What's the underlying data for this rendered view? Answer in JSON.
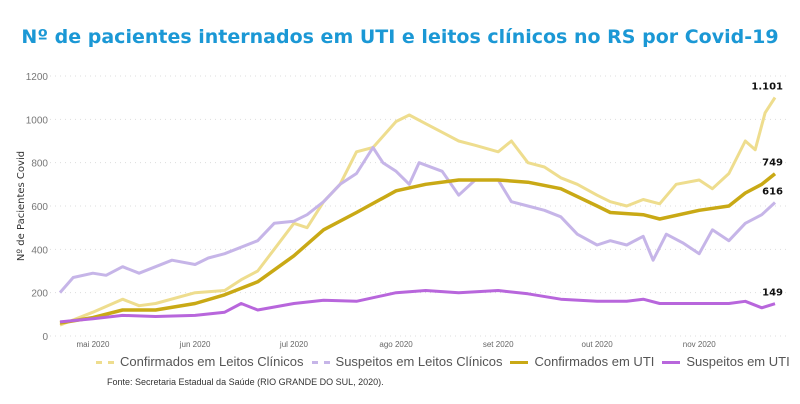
{
  "title": "Nº de pacientes internados em UTI e leitos clínicos no RS por Covid-19",
  "source": "Fonte: Secretaria Estadual da Saúde (RIO GRANDE DO SUL, 2020).",
  "chart_data": {
    "type": "line",
    "title": "Nº de pacientes internados em UTI e leitos clínicos no RS por Covid-19",
    "xlabel": "",
    "ylabel": "Nº de Pacientes Covid",
    "ylim": [
      0,
      1200
    ],
    "yticks": [
      0,
      200,
      400,
      600,
      800,
      1000,
      1200
    ],
    "xlim": [
      "2020-04-21",
      "2020-11-24"
    ],
    "xticks": [
      {
        "date": "2020-05-01",
        "label": "mai 2020"
      },
      {
        "date": "2020-06-01",
        "label": "jun 2020"
      },
      {
        "date": "2020-07-01",
        "label": "jul 2020"
      },
      {
        "date": "2020-08-01",
        "label": "ago 2020"
      },
      {
        "date": "2020-09-01",
        "label": "set 2020"
      },
      {
        "date": "2020-10-01",
        "label": "out 2020"
      },
      {
        "date": "2020-11-01",
        "label": "nov 2020"
      }
    ],
    "grid": true,
    "legend_position": "bottom",
    "series": [
      {
        "name": "Confirmados em Leitos Clínicos",
        "color": "#eedd8e",
        "dashed_legend": true,
        "end_label": "1.101",
        "points": [
          [
            "2020-04-21",
            50
          ],
          [
            "2020-05-01",
            110
          ],
          [
            "2020-05-10",
            170
          ],
          [
            "2020-05-15",
            140
          ],
          [
            "2020-05-20",
            150
          ],
          [
            "2020-06-01",
            200
          ],
          [
            "2020-06-10",
            210
          ],
          [
            "2020-06-15",
            260
          ],
          [
            "2020-06-20",
            300
          ],
          [
            "2020-06-25",
            400
          ],
          [
            "2020-07-01",
            520
          ],
          [
            "2020-07-05",
            500
          ],
          [
            "2020-07-10",
            620
          ],
          [
            "2020-07-15",
            700
          ],
          [
            "2020-07-20",
            850
          ],
          [
            "2020-07-25",
            870
          ],
          [
            "2020-08-01",
            990
          ],
          [
            "2020-08-05",
            1020
          ],
          [
            "2020-08-10",
            980
          ],
          [
            "2020-08-15",
            940
          ],
          [
            "2020-08-20",
            900
          ],
          [
            "2020-08-25",
            880
          ],
          [
            "2020-09-01",
            850
          ],
          [
            "2020-09-05",
            900
          ],
          [
            "2020-09-10",
            800
          ],
          [
            "2020-09-15",
            780
          ],
          [
            "2020-09-20",
            730
          ],
          [
            "2020-09-25",
            700
          ],
          [
            "2020-10-01",
            650
          ],
          [
            "2020-10-05",
            620
          ],
          [
            "2020-10-10",
            600
          ],
          [
            "2020-10-15",
            630
          ],
          [
            "2020-10-20",
            610
          ],
          [
            "2020-10-25",
            700
          ],
          [
            "2020-11-01",
            720
          ],
          [
            "2020-11-05",
            680
          ],
          [
            "2020-11-10",
            750
          ],
          [
            "2020-11-15",
            900
          ],
          [
            "2020-11-18",
            860
          ],
          [
            "2020-11-21",
            1030
          ],
          [
            "2020-11-24",
            1101
          ]
        ]
      },
      {
        "name": "Suspeitos em Leitos Clínicos",
        "color": "#c6b5e8",
        "dashed_legend": true,
        "end_label": "616",
        "points": [
          [
            "2020-04-21",
            200
          ],
          [
            "2020-04-25",
            270
          ],
          [
            "2020-05-01",
            290
          ],
          [
            "2020-05-05",
            280
          ],
          [
            "2020-05-10",
            320
          ],
          [
            "2020-05-15",
            290
          ],
          [
            "2020-05-20",
            320
          ],
          [
            "2020-05-25",
            350
          ],
          [
            "2020-06-01",
            330
          ],
          [
            "2020-06-05",
            360
          ],
          [
            "2020-06-10",
            380
          ],
          [
            "2020-06-15",
            410
          ],
          [
            "2020-06-20",
            440
          ],
          [
            "2020-06-25",
            520
          ],
          [
            "2020-07-01",
            530
          ],
          [
            "2020-07-05",
            560
          ],
          [
            "2020-07-10",
            620
          ],
          [
            "2020-07-15",
            700
          ],
          [
            "2020-07-20",
            750
          ],
          [
            "2020-07-25",
            870
          ],
          [
            "2020-07-28",
            800
          ],
          [
            "2020-08-01",
            760
          ],
          [
            "2020-08-05",
            700
          ],
          [
            "2020-08-08",
            800
          ],
          [
            "2020-08-15",
            760
          ],
          [
            "2020-08-20",
            650
          ],
          [
            "2020-08-25",
            720
          ],
          [
            "2020-09-01",
            720
          ],
          [
            "2020-09-05",
            620
          ],
          [
            "2020-09-10",
            600
          ],
          [
            "2020-09-15",
            580
          ],
          [
            "2020-09-20",
            550
          ],
          [
            "2020-09-25",
            470
          ],
          [
            "2020-10-01",
            420
          ],
          [
            "2020-10-05",
            440
          ],
          [
            "2020-10-10",
            420
          ],
          [
            "2020-10-15",
            460
          ],
          [
            "2020-10-18",
            350
          ],
          [
            "2020-10-22",
            470
          ],
          [
            "2020-10-27",
            430
          ],
          [
            "2020-11-01",
            380
          ],
          [
            "2020-11-05",
            490
          ],
          [
            "2020-11-10",
            440
          ],
          [
            "2020-11-15",
            520
          ],
          [
            "2020-11-20",
            560
          ],
          [
            "2020-11-24",
            616
          ]
        ]
      },
      {
        "name": "Confirmados em UTI",
        "color": "#c9a915",
        "dashed_legend": false,
        "end_label": "749",
        "points": [
          [
            "2020-04-21",
            60
          ],
          [
            "2020-05-01",
            85
          ],
          [
            "2020-05-10",
            120
          ],
          [
            "2020-05-20",
            120
          ],
          [
            "2020-06-01",
            150
          ],
          [
            "2020-06-10",
            190
          ],
          [
            "2020-06-20",
            250
          ],
          [
            "2020-07-01",
            370
          ],
          [
            "2020-07-10",
            490
          ],
          [
            "2020-07-20",
            570
          ],
          [
            "2020-08-01",
            670
          ],
          [
            "2020-08-10",
            700
          ],
          [
            "2020-08-20",
            720
          ],
          [
            "2020-09-01",
            720
          ],
          [
            "2020-09-10",
            710
          ],
          [
            "2020-09-20",
            680
          ],
          [
            "2020-10-01",
            600
          ],
          [
            "2020-10-05",
            570
          ],
          [
            "2020-10-15",
            560
          ],
          [
            "2020-10-20",
            540
          ],
          [
            "2020-11-01",
            580
          ],
          [
            "2020-11-10",
            600
          ],
          [
            "2020-11-15",
            660
          ],
          [
            "2020-11-20",
            700
          ],
          [
            "2020-11-24",
            749
          ]
        ]
      },
      {
        "name": "Suspeitos em UTI",
        "color": "#b866dc",
        "dashed_legend": false,
        "end_label": "149",
        "points": [
          [
            "2020-04-21",
            65
          ],
          [
            "2020-05-01",
            80
          ],
          [
            "2020-05-10",
            95
          ],
          [
            "2020-05-20",
            90
          ],
          [
            "2020-06-01",
            95
          ],
          [
            "2020-06-10",
            110
          ],
          [
            "2020-06-15",
            150
          ],
          [
            "2020-06-20",
            120
          ],
          [
            "2020-07-01",
            150
          ],
          [
            "2020-07-10",
            165
          ],
          [
            "2020-07-20",
            160
          ],
          [
            "2020-08-01",
            200
          ],
          [
            "2020-08-10",
            210
          ],
          [
            "2020-08-20",
            200
          ],
          [
            "2020-09-01",
            210
          ],
          [
            "2020-09-10",
            195
          ],
          [
            "2020-09-20",
            170
          ],
          [
            "2020-10-01",
            160
          ],
          [
            "2020-10-10",
            160
          ],
          [
            "2020-10-15",
            170
          ],
          [
            "2020-10-20",
            150
          ],
          [
            "2020-11-01",
            150
          ],
          [
            "2020-11-10",
            150
          ],
          [
            "2020-11-15",
            160
          ],
          [
            "2020-11-20",
            130
          ],
          [
            "2020-11-24",
            149
          ]
        ]
      }
    ]
  }
}
